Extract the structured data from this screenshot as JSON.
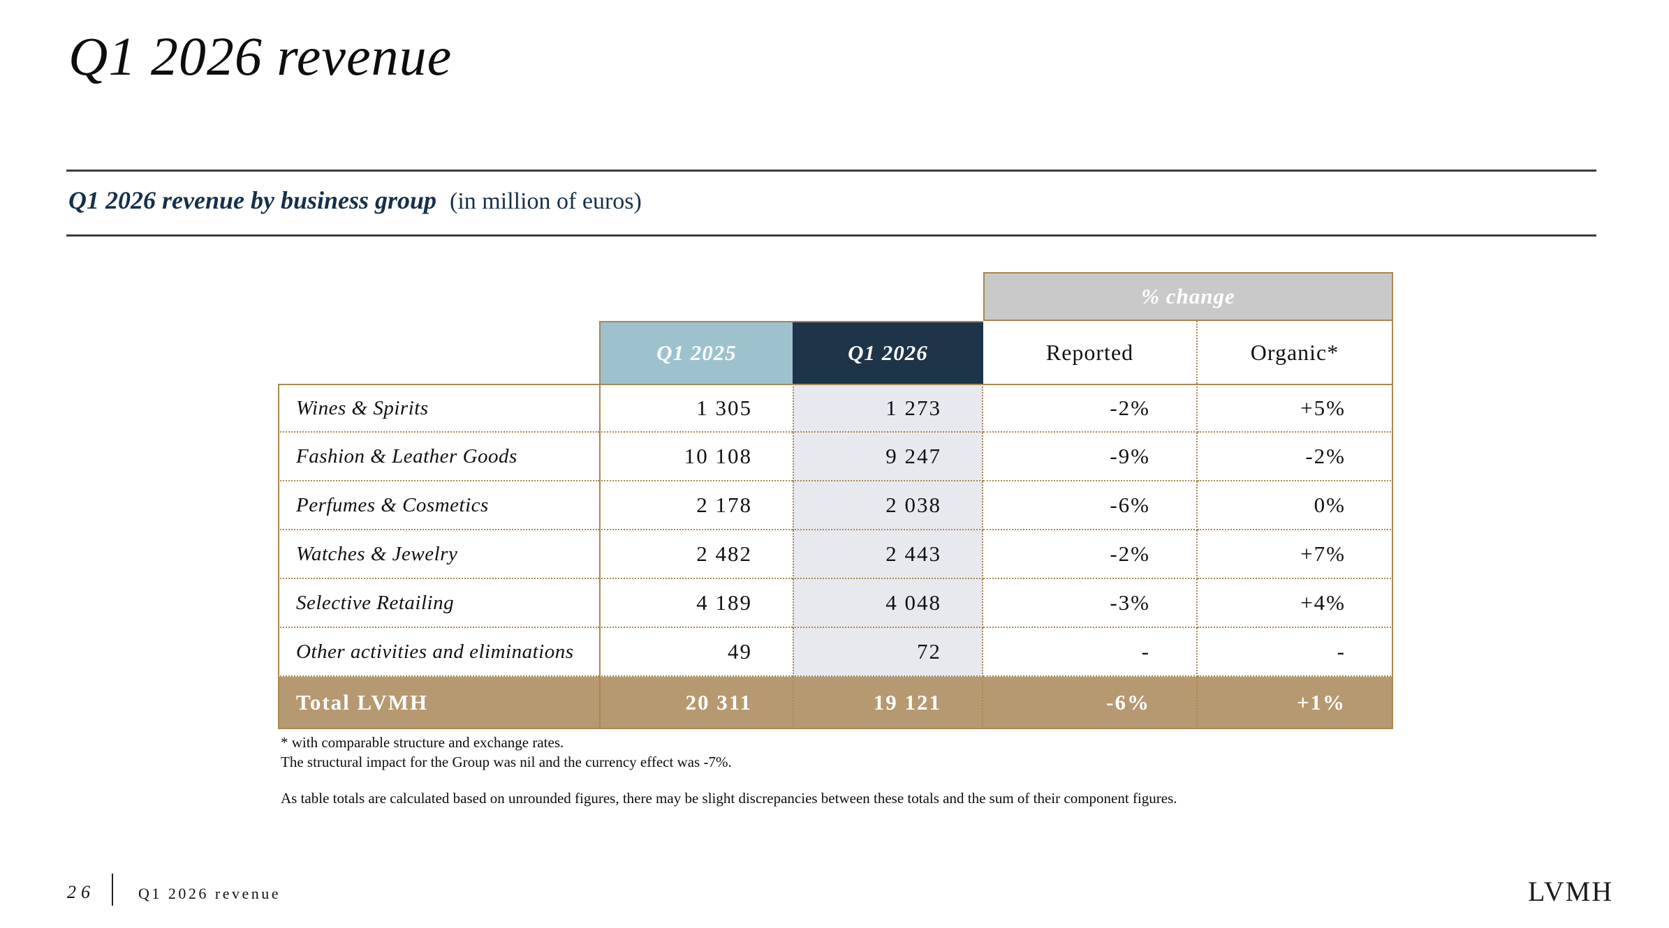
{
  "slide": {
    "title": "Q1 2026 revenue",
    "section_heading": {
      "bold": "Q1 2026 revenue by business group",
      "unit_note": "(in million of euros)"
    }
  },
  "table": {
    "group_header": "% change",
    "columns": [
      "Q1 2025",
      "Q1 2026",
      "Reported",
      "Organic*"
    ],
    "rows": [
      {
        "label": "Wines & Spirits",
        "q1_2025": "1 305",
        "q1_2026": "1 273",
        "reported": "-2%",
        "organic": "+5%"
      },
      {
        "label": "Fashion & Leather Goods",
        "q1_2025": "10 108",
        "q1_2026": "9 247",
        "reported": "-9%",
        "organic": "-2%"
      },
      {
        "label": "Perfumes & Cosmetics",
        "q1_2025": "2 178",
        "q1_2026": "2 038",
        "reported": "-6%",
        "organic": "0%"
      },
      {
        "label": "Watches & Jewelry",
        "q1_2025": "2 482",
        "q1_2026": "2 443",
        "reported": "-2%",
        "organic": "+7%"
      },
      {
        "label": "Selective Retailing",
        "q1_2025": "4 189",
        "q1_2026": "4 048",
        "reported": "-3%",
        "organic": "+4%"
      },
      {
        "label": "Other activities and eliminations",
        "q1_2025": "49",
        "q1_2026": "72",
        "reported": "-",
        "organic": "-"
      }
    ],
    "total": {
      "label": "Total LVMH",
      "q1_2025": "20 311",
      "q1_2026": "19 121",
      "reported": "-6%",
      "organic": "+1%"
    }
  },
  "footnotes": {
    "line1": "* with comparable structure and exchange rates.",
    "line2": "The structural impact for the Group was nil and the currency effect was -7%.",
    "line3": "As table totals are calculated based on unrounded figures, there may be slight discrepancies between these totals and the sum of their component figures."
  },
  "footer": {
    "page_number": "26",
    "section_label": "Q1 2026 revenue",
    "logo_text": "LVMH"
  },
  "colors": {
    "tan-border": "#a8874f",
    "tan-bg": "#b69970",
    "blue-bg": "#9dc2ce",
    "navy-bg": "#1e3448",
    "gray-bg": "#c9c9c9",
    "col-bg": "#e8e9ee",
    "navy-text": "#16304a"
  }
}
